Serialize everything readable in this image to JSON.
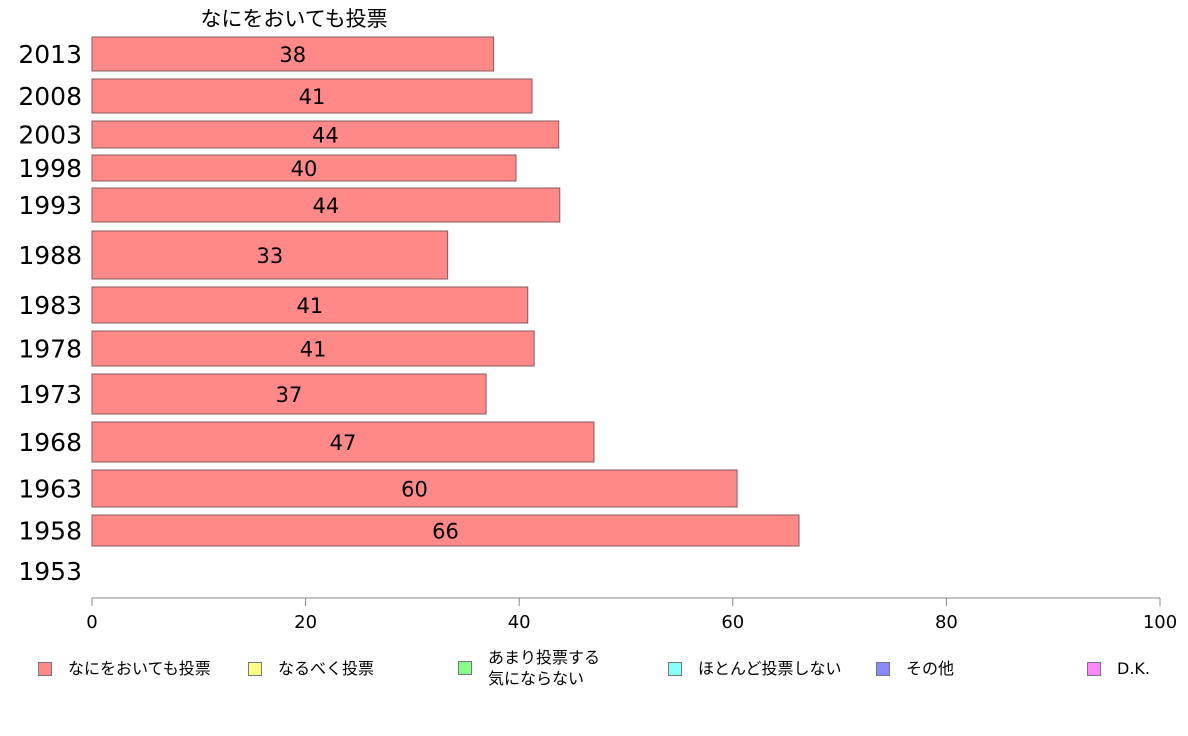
{
  "chart_data": {
    "type": "bar",
    "orientation": "horizontal",
    "title": "なにをおいても投票",
    "categories": [
      "2013",
      "2008",
      "2003",
      "1998",
      "1993",
      "1988",
      "1983",
      "1978",
      "1973",
      "1968",
      "1963",
      "1958",
      "1953"
    ],
    "series": [
      {
        "name": "なにをおいても投票",
        "color": "#ff8888",
        "values": [
          38,
          41,
          44,
          40,
          44,
          33,
          41,
          41,
          37,
          47,
          60,
          66,
          null
        ],
        "extent": [
          37.6,
          41.2,
          43.7,
          39.7,
          43.8,
          33.3,
          40.8,
          41.4,
          36.9,
          47.0,
          60.4,
          66.2,
          null
        ],
        "labels": [
          "38",
          "41",
          "44",
          "40",
          "44",
          "33",
          "41",
          "41",
          "37",
          "47",
          "60",
          "66",
          ""
        ]
      }
    ],
    "xlim": [
      0,
      100
    ],
    "xticks": [
      "0",
      "20",
      "40",
      "60",
      "80",
      "100"
    ],
    "grid": false,
    "legend_position": "bottom",
    "legend": [
      {
        "label": "なにをおいても投票",
        "color": "#ff8888"
      },
      {
        "label": "なるべく投票",
        "color": "#ffff88"
      },
      {
        "label": "あまり投票する\n気にならない",
        "color": "#88ff88"
      },
      {
        "label": "ほとんど投票しない",
        "color": "#88ffff"
      },
      {
        "label": "その他",
        "color": "#8888ff"
      },
      {
        "label": "D.K.",
        "color": "#ff88ff"
      }
    ]
  }
}
